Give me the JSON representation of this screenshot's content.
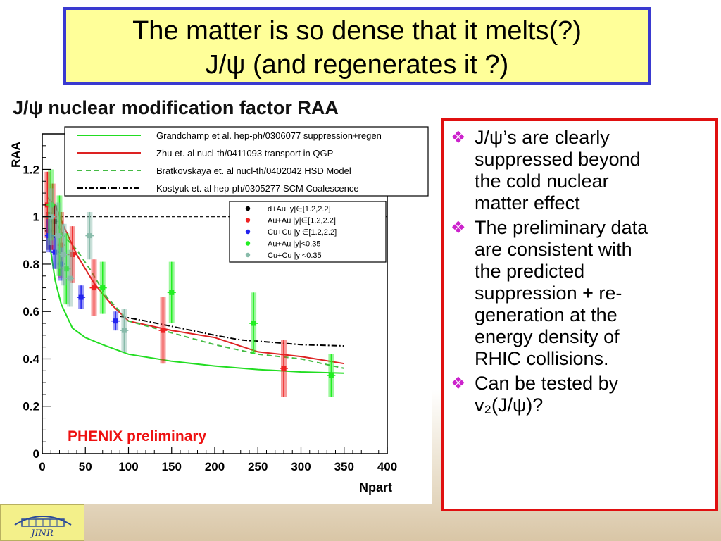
{
  "slide": {
    "title_line1": "The matter is so dense that it melts(?)",
    "title_line2": "J/ψ (and regenerates it ?)"
  },
  "bullets": [
    {
      "lines": [
        "J/ψ’s are clearly",
        "suppressed beyond",
        "the cold nuclear",
        "matter effect"
      ]
    },
    {
      "lines": [
        "The preliminary data",
        "are consistent with",
        "the predicted",
        "suppression + re-",
        "generation at the",
        "energy density of",
        "RHIC collisions."
      ]
    },
    {
      "lines": [
        "Can be tested by",
        "v₂(J/ψ)?"
      ]
    }
  ],
  "logo": {
    "text": "JINR"
  },
  "chart_data": {
    "type": "scatter",
    "title": "J/ψ nuclear modification factor RAA",
    "xlabel": "Npart",
    "ylabel": "RAA",
    "xlim": [
      0,
      400
    ],
    "ylim": [
      0,
      1.35
    ],
    "xticks": [
      0,
      50,
      100,
      150,
      200,
      250,
      300,
      350,
      400
    ],
    "yticks": [
      0,
      0.2,
      0.4,
      0.6,
      0.8,
      1,
      1.2
    ],
    "ytick_labels": [
      "0",
      "0.2",
      "0.4",
      "0.6",
      "0.8",
      "1",
      "1.2"
    ],
    "annotation": "PHENIX preliminary",
    "reference_line": 1.0,
    "model_legend": [
      {
        "label": "Grandchamp et al. hep-ph/0306077 suppression+regen",
        "color": "#22dd22",
        "dash": "solid"
      },
      {
        "label": "Zhu et. al nucl-th/0411093 transport in QGP",
        "color": "#dd2222",
        "dash": "solid"
      },
      {
        "label": "Bratkovskaya et. al nucl-th/0402042 HSD Model",
        "color": "#44bb44",
        "dash": "dashed"
      },
      {
        "label": "Kostyuk et. al hep-ph/0305277 SCM Coalescence",
        "color": "#000000",
        "dash": "dashdot"
      }
    ],
    "data_legend": [
      {
        "label": "d+Au |y|∈[1.2,2.2]",
        "color": "#000000"
      },
      {
        "label": "Au+Au |y|∈[1.2,2.2]",
        "color": "#ee2222"
      },
      {
        "label": "Cu+Cu |y|∈[1.2,2.2]",
        "color": "#2222ee"
      },
      {
        "label": "Au+Au |y|<0.35",
        "color": "#22ee22"
      },
      {
        "label": "Cu+Cu |y|<0.35",
        "color": "#88bbaa"
      }
    ],
    "models": [
      {
        "color": "#22dd22",
        "dash": "solid",
        "points": [
          [
            6,
            0.98
          ],
          [
            10,
            0.85
          ],
          [
            15,
            0.73
          ],
          [
            22,
            0.63
          ],
          [
            35,
            0.53
          ],
          [
            50,
            0.49
          ],
          [
            70,
            0.46
          ],
          [
            100,
            0.42
          ],
          [
            150,
            0.39
          ],
          [
            200,
            0.37
          ],
          [
            250,
            0.355
          ],
          [
            300,
            0.345
          ],
          [
            350,
            0.34
          ]
        ]
      },
      {
        "color": "#dd2222",
        "dash": "solid",
        "points": [
          [
            6,
            1.08
          ],
          [
            15,
            1.05
          ],
          [
            25,
            0.96
          ],
          [
            40,
            0.84
          ],
          [
            60,
            0.72
          ],
          [
            80,
            0.63
          ],
          [
            100,
            0.56
          ],
          [
            150,
            0.52
          ],
          [
            200,
            0.49
          ],
          [
            250,
            0.43
          ],
          [
            300,
            0.41
          ],
          [
            350,
            0.38
          ]
        ]
      },
      {
        "color": "#44bb44",
        "dash": "dashed",
        "points": [
          [
            6,
            1.02
          ],
          [
            15,
            0.98
          ],
          [
            25,
            0.92
          ],
          [
            40,
            0.86
          ],
          [
            55,
            0.78
          ],
          [
            75,
            0.66
          ],
          [
            100,
            0.56
          ],
          [
            150,
            0.51
          ],
          [
            200,
            0.46
          ],
          [
            250,
            0.42
          ],
          [
            300,
            0.4
          ],
          [
            350,
            0.36
          ]
        ]
      },
      {
        "color": "#000000",
        "dash": "dashdot",
        "points": [
          [
            90,
            0.58
          ],
          [
            120,
            0.56
          ],
          [
            160,
            0.53
          ],
          [
            200,
            0.5
          ],
          [
            230,
            0.48
          ],
          [
            250,
            0.475
          ],
          [
            300,
            0.46
          ],
          [
            350,
            0.455
          ]
        ]
      }
    ],
    "series": [
      {
        "name": "d+Au |y|∈[1.2,2.2]",
        "color": "#000000",
        "points": [
          [
            8,
            0.94,
            0.08
          ],
          [
            14,
            0.98,
            0.07
          ]
        ]
      },
      {
        "name": "Au+Au |y|∈[1.2,2.2]",
        "color": "#ee2222",
        "points": [
          [
            6,
            1.05,
            0.14
          ],
          [
            12,
            1.0,
            0.14
          ],
          [
            22,
            0.88,
            0.14
          ],
          [
            35,
            0.84,
            0.12
          ],
          [
            60,
            0.7,
            0.12
          ],
          [
            140,
            0.52,
            0.14
          ],
          [
            280,
            0.36,
            0.12
          ]
        ]
      },
      {
        "name": "Cu+Cu |y|∈[1.2,2.2]",
        "color": "#2222ee",
        "points": [
          [
            8,
            0.92,
            0.07
          ],
          [
            15,
            0.85,
            0.07
          ],
          [
            22,
            0.8,
            0.07
          ],
          [
            45,
            0.66,
            0.05
          ],
          [
            85,
            0.56,
            0.04
          ]
        ]
      },
      {
        "name": "Au+Au |y|<0.35",
        "color": "#22ee22",
        "points": [
          [
            10,
            1.05,
            0.15
          ],
          [
            20,
            0.92,
            0.17
          ],
          [
            28,
            0.78,
            0.15
          ],
          [
            70,
            0.7,
            0.11
          ],
          [
            150,
            0.68,
            0.13
          ],
          [
            245,
            0.55,
            0.13
          ],
          [
            335,
            0.33,
            0.09
          ]
        ]
      },
      {
        "name": "Cu+Cu |y|<0.35",
        "color": "#88bbaa",
        "points": [
          [
            10,
            1.0,
            0.12
          ],
          [
            18,
            0.92,
            0.14
          ],
          [
            25,
            0.84,
            0.13
          ],
          [
            32,
            0.74,
            0.12
          ],
          [
            55,
            0.92,
            0.1
          ],
          [
            95,
            0.52,
            0.09
          ]
        ]
      }
    ]
  }
}
